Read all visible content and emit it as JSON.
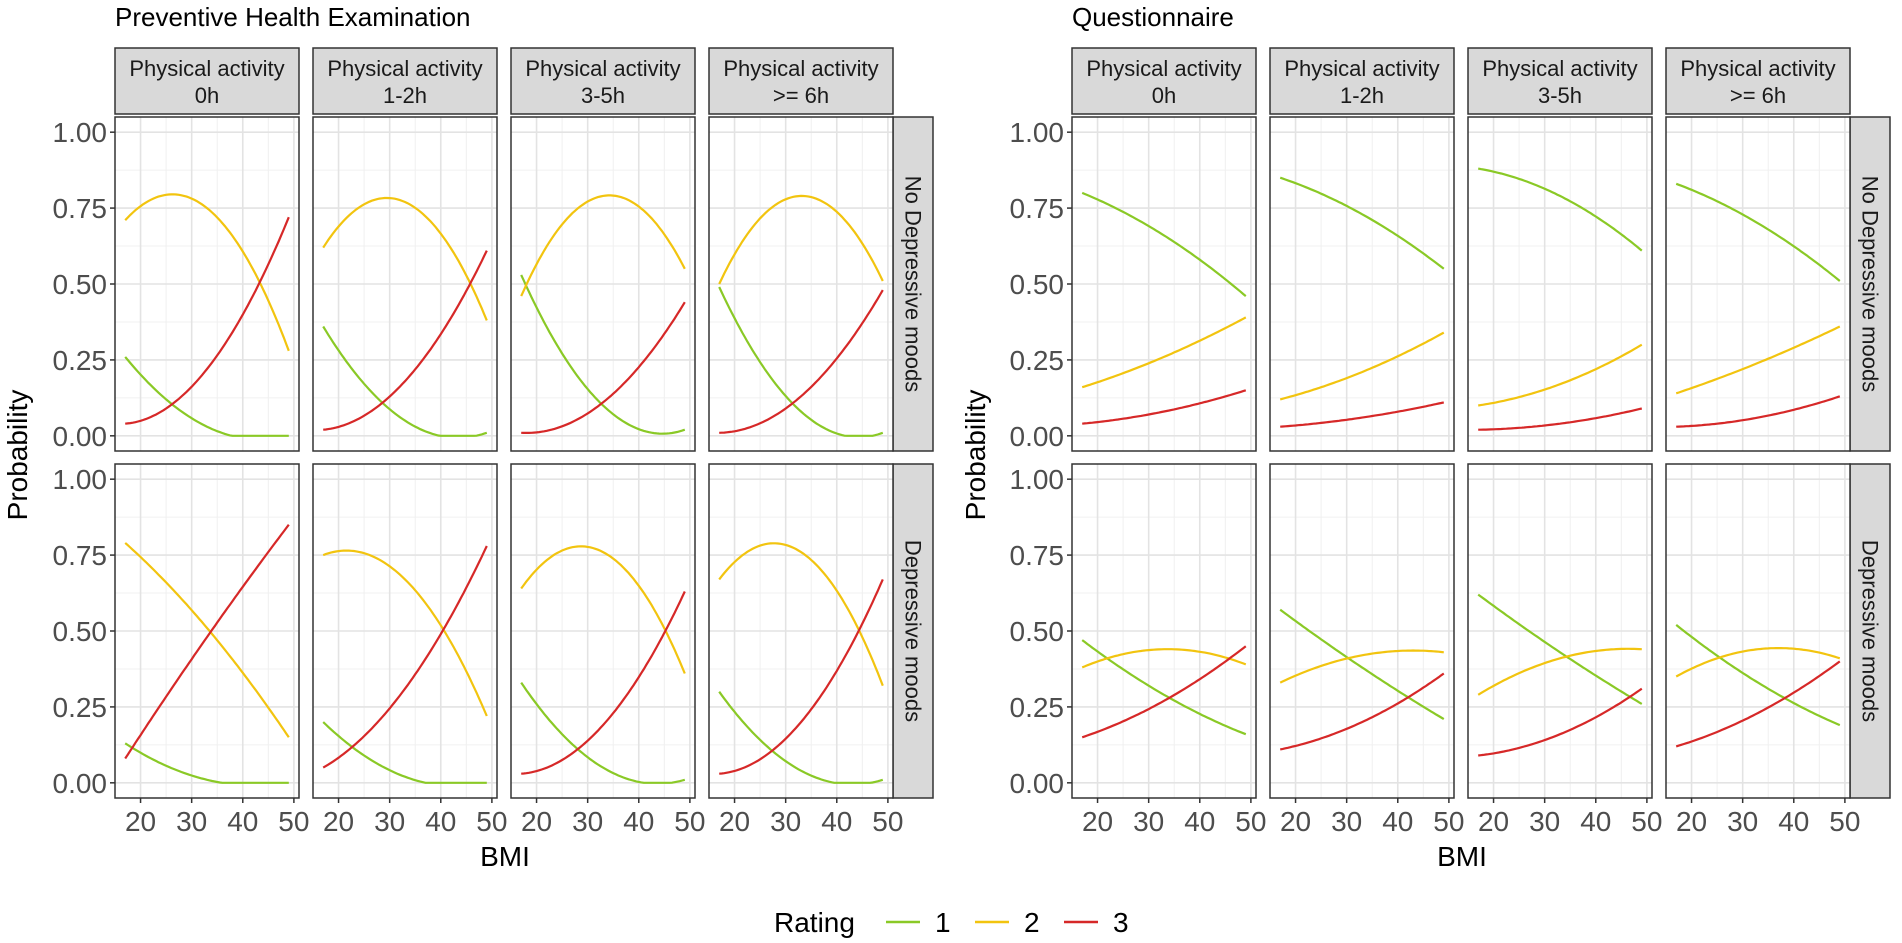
{
  "chart_data": {
    "type": "line",
    "ylabel": "Probability",
    "xlabel": "BMI",
    "x_ticks": [
      20,
      30,
      40,
      50
    ],
    "y_ticks": [
      "0.00",
      "0.25",
      "0.50",
      "0.75",
      "1.00"
    ],
    "xlim": [
      15,
      51
    ],
    "ylim": [
      -0.05,
      1.05
    ],
    "legend": {
      "title": "Rating",
      "position": "bottom",
      "items": [
        {
          "label": "1",
          "color": "#8ac926"
        },
        {
          "label": "2",
          "color": "#f2c40f"
        },
        {
          "label": "3",
          "color": "#d62828"
        }
      ]
    },
    "column_strips": [
      [
        "Physical activity",
        "0h"
      ],
      [
        "Physical activity",
        "1-2h"
      ],
      [
        "Physical activity",
        "3-5h"
      ],
      [
        "Physical activity",
        ">= 6h"
      ]
    ],
    "row_strips": [
      "No Depressive moods",
      "Depressive moods"
    ],
    "bmi_points": [
      17,
      33,
      49
    ],
    "panels": [
      {
        "title": "Preventive Health Examination",
        "cells": [
          [
            {
              "s1": [
                0.26,
                0.03,
                0.0
              ],
              "s2": [
                0.71,
                0.75,
                0.28
              ],
              "s3": [
                0.04,
                0.22,
                0.72
              ]
            },
            {
              "s1": [
                0.36,
                0.05,
                0.01
              ],
              "s2": [
                0.62,
                0.77,
                0.38
              ],
              "s3": [
                0.02,
                0.18,
                0.61
              ]
            },
            {
              "s1": [
                0.53,
                0.1,
                0.02
              ],
              "s2": [
                0.46,
                0.79,
                0.55
              ],
              "s3": [
                0.01,
                0.11,
                0.44
              ]
            },
            {
              "s1": [
                0.49,
                0.08,
                0.01
              ],
              "s2": [
                0.5,
                0.79,
                0.51
              ],
              "s3": [
                0.01,
                0.13,
                0.48
              ]
            }
          ],
          [
            {
              "s1": [
                0.13,
                0.01,
                0.0
              ],
              "s2": [
                0.79,
                0.51,
                0.15
              ],
              "s3": [
                0.08,
                0.48,
                0.85
              ]
            },
            {
              "s1": [
                0.2,
                0.02,
                0.0
              ],
              "s2": [
                0.75,
                0.67,
                0.22
              ],
              "s3": [
                0.05,
                0.31,
                0.78
              ]
            },
            {
              "s1": [
                0.33,
                0.05,
                0.01
              ],
              "s2": [
                0.64,
                0.76,
                0.36
              ],
              "s3": [
                0.03,
                0.19,
                0.63
              ]
            },
            {
              "s1": [
                0.3,
                0.04,
                0.01
              ],
              "s2": [
                0.67,
                0.76,
                0.32
              ],
              "s3": [
                0.03,
                0.2,
                0.67
              ]
            }
          ]
        ]
      },
      {
        "title": "Questionnaire",
        "cells": [
          [
            {
              "s1": [
                0.8,
                0.66,
                0.46
              ],
              "s2": [
                0.16,
                0.26,
                0.39
              ],
              "s3": [
                0.04,
                0.08,
                0.15
              ]
            },
            {
              "s1": [
                0.85,
                0.73,
                0.55
              ],
              "s2": [
                0.12,
                0.21,
                0.34
              ],
              "s3": [
                0.03,
                0.06,
                0.11
              ]
            },
            {
              "s1": [
                0.88,
                0.79,
                0.61
              ],
              "s2": [
                0.1,
                0.17,
                0.3
              ],
              "s3": [
                0.02,
                0.04,
                0.09
              ]
            },
            {
              "s1": [
                0.83,
                0.7,
                0.51
              ],
              "s2": [
                0.14,
                0.24,
                0.36
              ],
              "s3": [
                0.03,
                0.06,
                0.13
              ]
            }
          ],
          [
            {
              "s1": [
                0.47,
                0.29,
                0.16
              ],
              "s2": [
                0.38,
                0.44,
                0.39
              ],
              "s3": [
                0.15,
                0.27,
                0.45
              ]
            },
            {
              "s1": [
                0.57,
                0.38,
                0.21
              ],
              "s2": [
                0.33,
                0.42,
                0.43
              ],
              "s3": [
                0.11,
                0.2,
                0.36
              ]
            },
            {
              "s1": [
                0.62,
                0.43,
                0.26
              ],
              "s2": [
                0.29,
                0.41,
                0.44
              ],
              "s3": [
                0.09,
                0.16,
                0.31
              ]
            },
            {
              "s1": [
                0.52,
                0.33,
                0.19
              ],
              "s2": [
                0.35,
                0.44,
                0.41
              ],
              "s3": [
                0.12,
                0.23,
                0.4
              ]
            }
          ]
        ]
      }
    ]
  }
}
